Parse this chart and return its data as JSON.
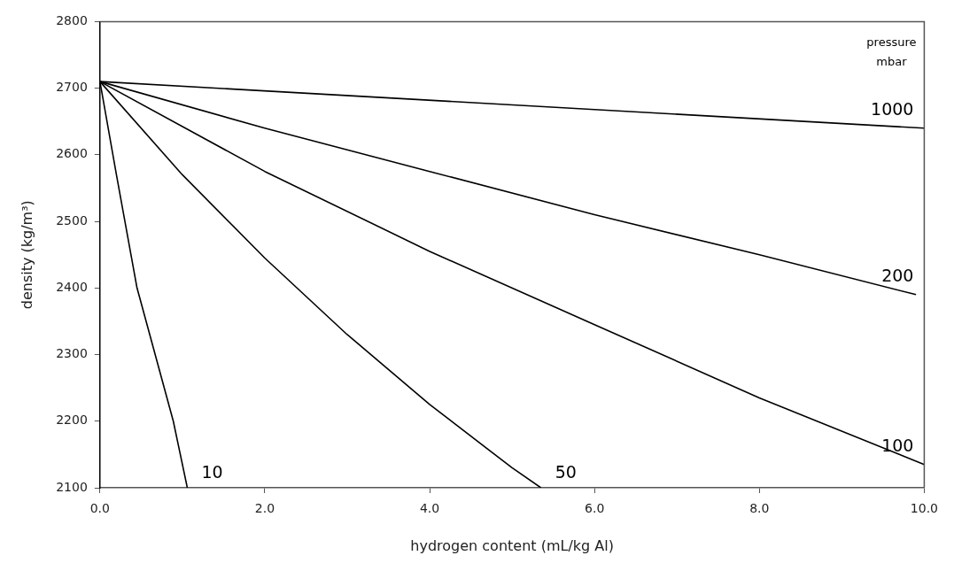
{
  "chart_data": {
    "type": "line",
    "xlabel": "hydrogen content (mL/kg Al)",
    "ylabel": "density (kg/m³)",
    "legend_title": "pressure mbar",
    "xlim": [
      0,
      10
    ],
    "xticks": [
      {
        "value": 0,
        "label": "0.0"
      },
      {
        "value": 2,
        "label": "2.0"
      },
      {
        "value": 4,
        "label": "4.0"
      },
      {
        "value": 6,
        "label": "6.0"
      },
      {
        "value": 8,
        "label": "8.0"
      },
      {
        "value": 10,
        "label": "10.0"
      }
    ],
    "ylim": [
      2100,
      2800
    ],
    "yticks": [
      2100,
      2200,
      2300,
      2400,
      2500,
      2600,
      2700,
      2800
    ],
    "grid": false,
    "legend": false,
    "marker": "none",
    "line_style": "solid",
    "series": [
      {
        "name": "1000",
        "color": "#000000",
        "x": [
          0,
          10
        ],
        "values": [
          2710,
          2640
        ]
      },
      {
        "name": "200",
        "color": "#000000",
        "x": [
          0,
          2,
          4,
          6,
          8,
          9.9
        ],
        "values": [
          2710,
          2640,
          2575,
          2510,
          2450,
          2390
        ]
      },
      {
        "name": "100",
        "color": "#000000",
        "x": [
          0,
          2,
          4,
          6,
          8,
          10
        ],
        "values": [
          2710,
          2575,
          2455,
          2345,
          2235,
          2135
        ]
      },
      {
        "name": "50",
        "color": "#000000",
        "x": [
          0,
          1,
          2,
          3,
          4,
          5,
          5.35
        ],
        "values": [
          2710,
          2570,
          2445,
          2330,
          2225,
          2130,
          2100
        ]
      },
      {
        "name": "10",
        "color": "#000000",
        "x": [
          0,
          0.2,
          0.45,
          0.89,
          1.06
        ],
        "values": [
          2710,
          2570,
          2400,
          2200,
          2100
        ]
      }
    ]
  }
}
